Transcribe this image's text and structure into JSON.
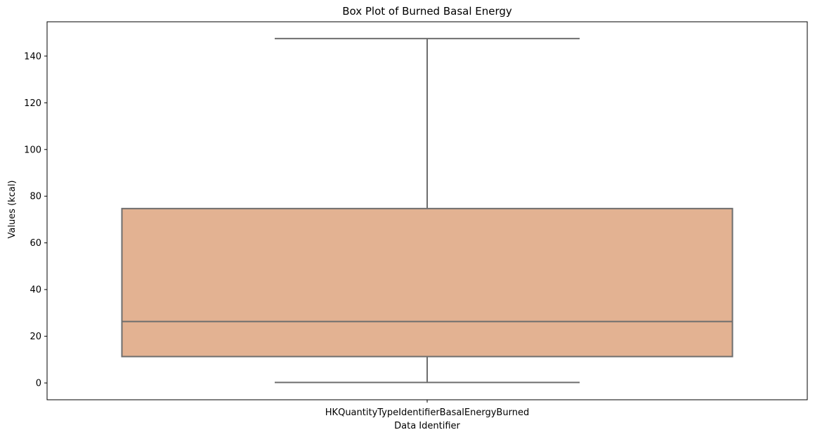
{
  "chart_data": {
    "type": "box",
    "title": "Box Plot of Burned Basal Energy",
    "xlabel": "Data Identifier",
    "ylabel": "Values (kcal)",
    "categories": [
      "HKQuantityTypeIdentifierBasalEnergyBurned"
    ],
    "boxes": [
      {
        "category": "HKQuantityTypeIdentifierBasalEnergyBurned",
        "whisker_low": 0.2,
        "q1": 11.3,
        "median": 26.3,
        "q3": 74.7,
        "whisker_high": 147.5
      }
    ],
    "ylim": [
      -7.2,
      154.7
    ],
    "yticks": [
      0,
      20,
      40,
      60,
      80,
      100,
      120,
      140
    ],
    "grid": false,
    "legend": "none",
    "colors": {
      "box_fill": "#e3b292",
      "box_line": "#6e6e6e",
      "axes": "#000000"
    }
  }
}
